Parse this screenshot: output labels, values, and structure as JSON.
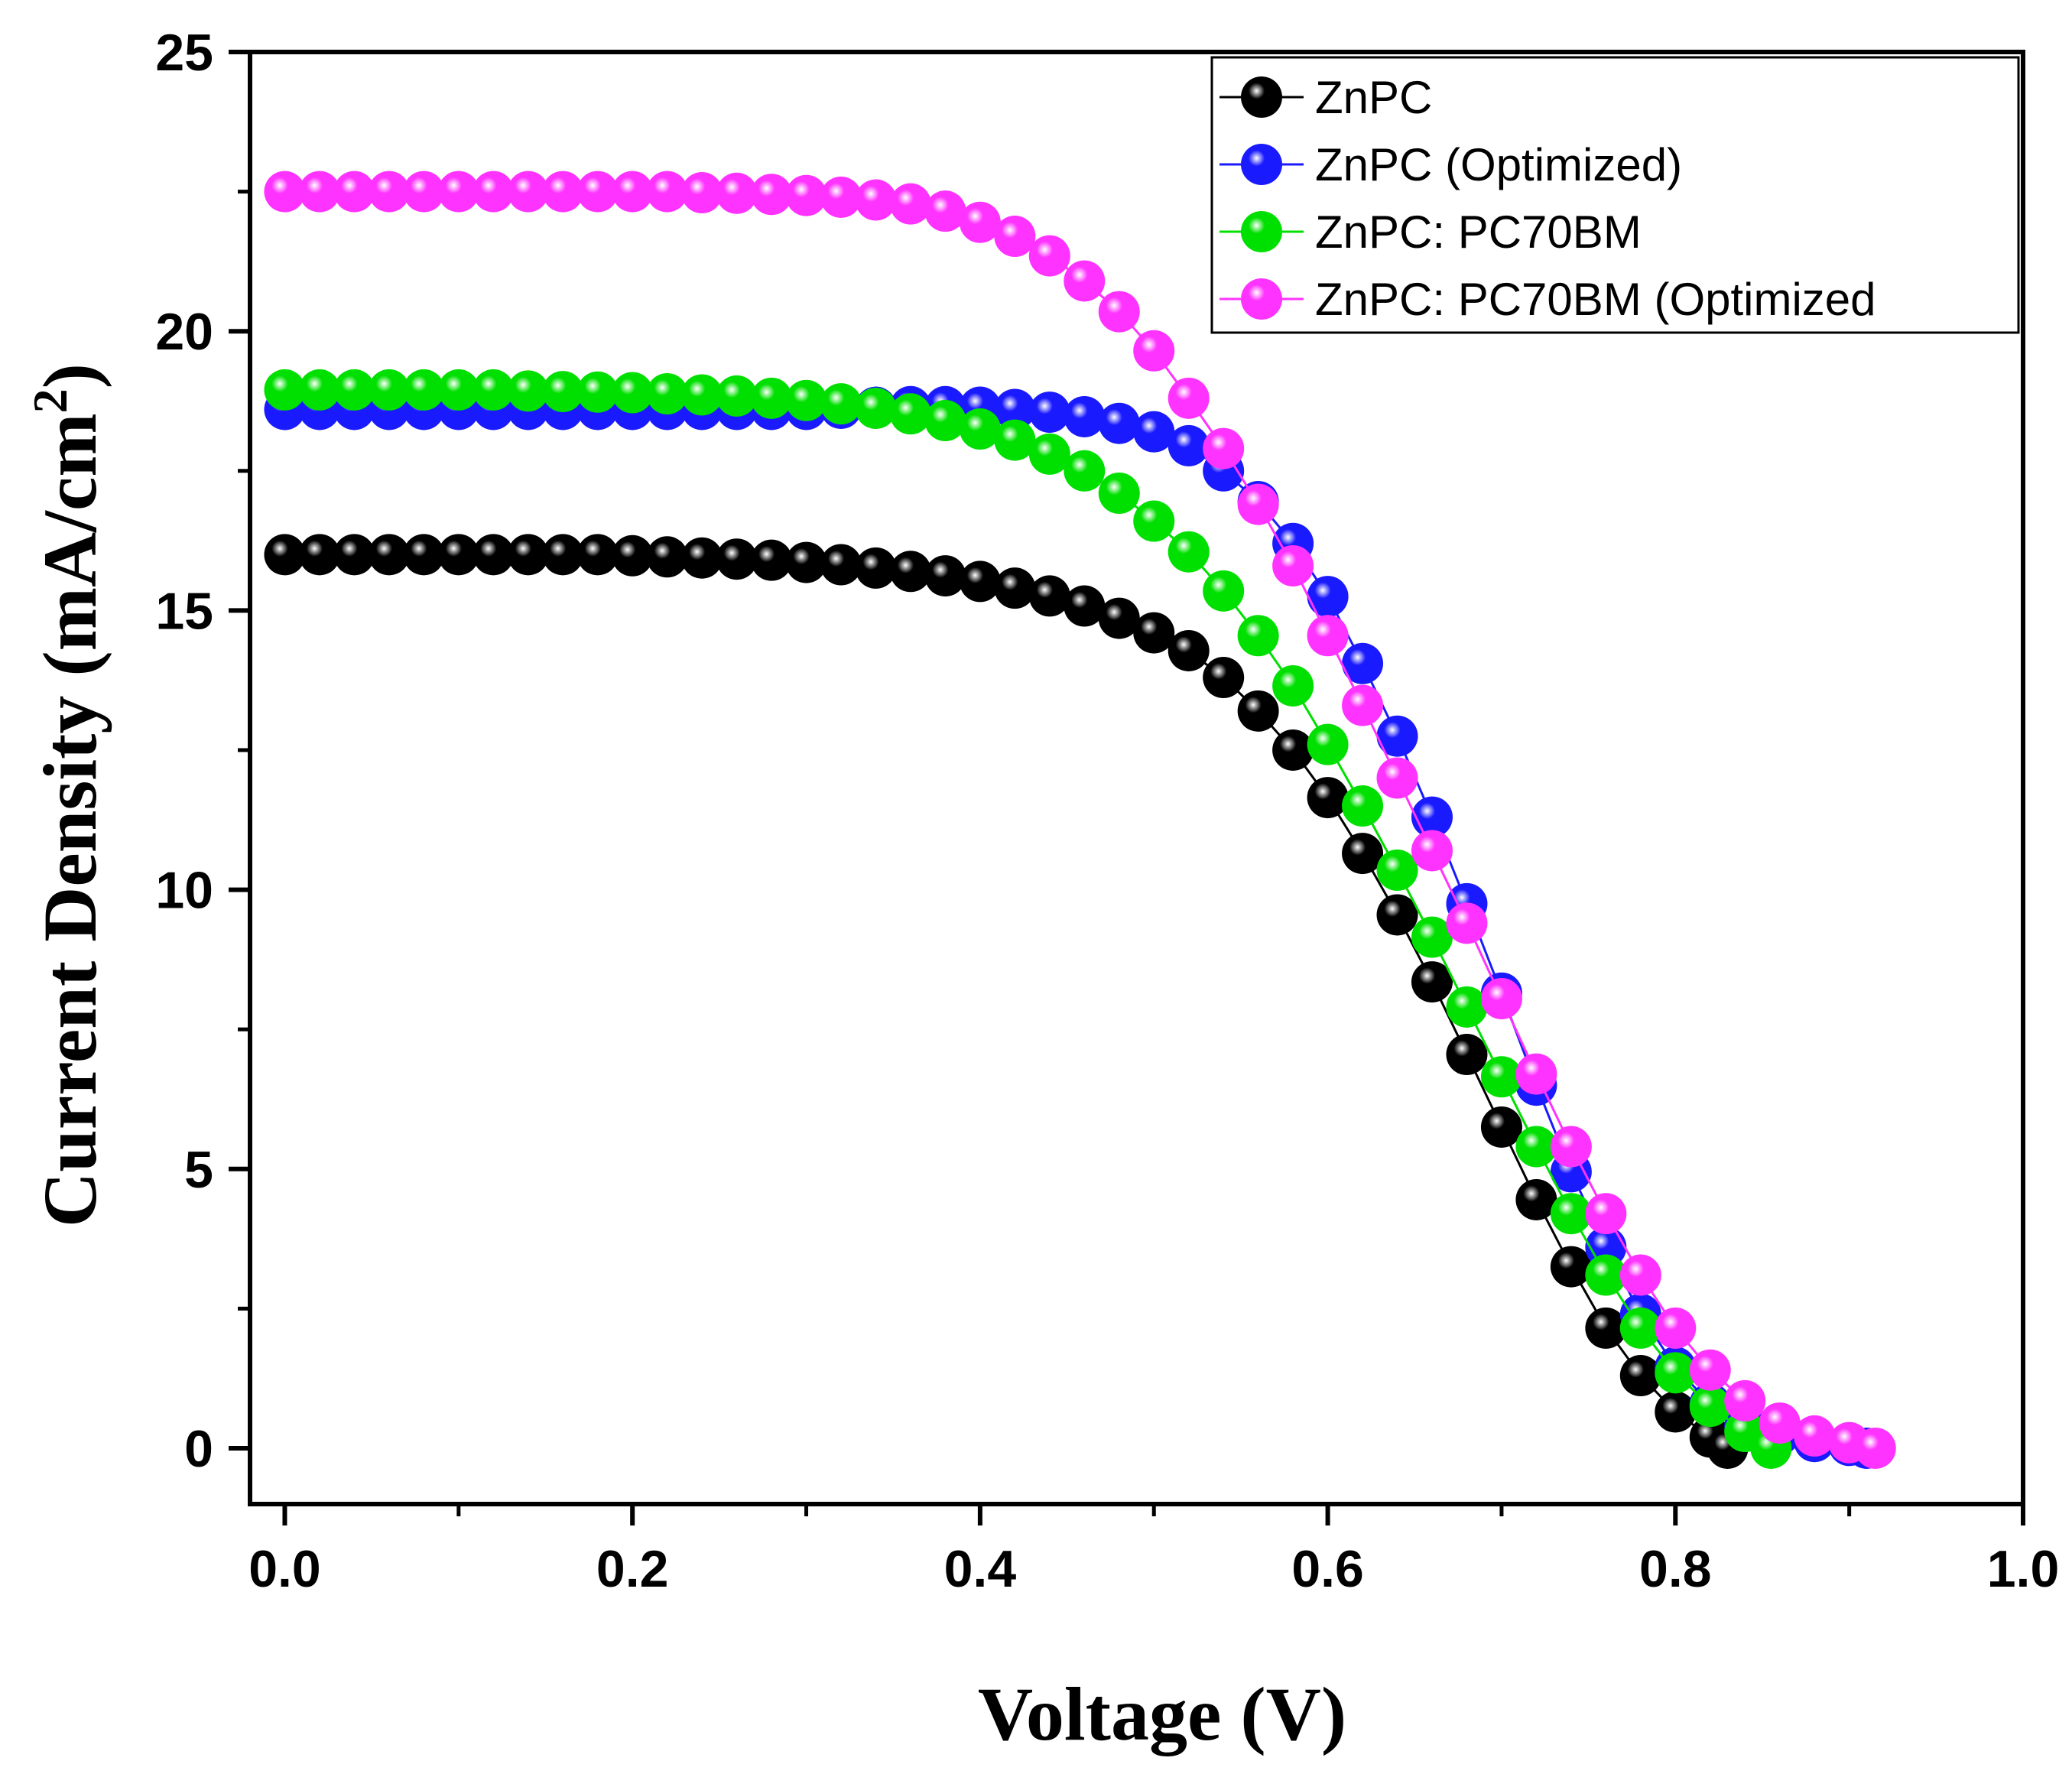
{
  "chart_data": {
    "type": "scatter",
    "title": "",
    "xlabel": "Voltage (V)",
    "ylabel": "Current Density (mA/cm",
    "ylabel_sup": "2",
    "ylabel_close": ")",
    "xlim": [
      -0.02,
      1.0
    ],
    "ylim": [
      -1.0,
      25
    ],
    "xticks": [
      "0.0",
      "0.2",
      "0.4",
      "0.6",
      "0.8",
      "1.0"
    ],
    "xtick_values": [
      0.0,
      0.2,
      0.4,
      0.6,
      0.8,
      1.0
    ],
    "yticks": [
      "0",
      "5",
      "10",
      "15",
      "20",
      "25"
    ],
    "ytick_values": [
      0,
      5,
      10,
      15,
      20,
      25
    ],
    "grid": false,
    "legend_position": "top-right",
    "series": [
      {
        "name": "ZnPC",
        "color": "#000000",
        "x": [
          0.0,
          0.02,
          0.04,
          0.06,
          0.08,
          0.1,
          0.12,
          0.14,
          0.16,
          0.18,
          0.2,
          0.22,
          0.24,
          0.26,
          0.28,
          0.3,
          0.32,
          0.34,
          0.36,
          0.38,
          0.4,
          0.42,
          0.44,
          0.46,
          0.48,
          0.5,
          0.52,
          0.54,
          0.56,
          0.58,
          0.6,
          0.62,
          0.64,
          0.66,
          0.68,
          0.7,
          0.72,
          0.74,
          0.76,
          0.78,
          0.8,
          0.82,
          0.83
        ],
        "y": [
          16.0,
          16.0,
          16.0,
          16.0,
          16.0,
          16.0,
          16.0,
          16.0,
          16.0,
          16.0,
          15.98,
          15.96,
          15.94,
          15.92,
          15.9,
          15.86,
          15.82,
          15.76,
          15.7,
          15.62,
          15.52,
          15.4,
          15.26,
          15.08,
          14.86,
          14.6,
          14.28,
          13.8,
          13.2,
          12.5,
          11.65,
          10.65,
          9.55,
          8.35,
          7.05,
          5.75,
          4.45,
          3.25,
          2.15,
          1.3,
          0.65,
          0.2,
          0.0
        ]
      },
      {
        "name": "ZnPC (Optimized)",
        "color": "#1a1aff",
        "x": [
          0.0,
          0.02,
          0.04,
          0.06,
          0.08,
          0.1,
          0.12,
          0.14,
          0.16,
          0.18,
          0.2,
          0.22,
          0.24,
          0.26,
          0.28,
          0.3,
          0.32,
          0.34,
          0.36,
          0.38,
          0.4,
          0.42,
          0.44,
          0.46,
          0.48,
          0.5,
          0.52,
          0.54,
          0.56,
          0.58,
          0.6,
          0.62,
          0.64,
          0.66,
          0.68,
          0.7,
          0.72,
          0.74,
          0.76,
          0.78,
          0.8,
          0.82,
          0.84,
          0.86,
          0.88,
          0.9,
          0.91
        ],
        "y": [
          18.6,
          18.6,
          18.6,
          18.6,
          18.6,
          18.6,
          18.6,
          18.6,
          18.6,
          18.6,
          18.6,
          18.6,
          18.6,
          18.6,
          18.6,
          18.6,
          18.62,
          18.64,
          18.65,
          18.65,
          18.64,
          18.6,
          18.55,
          18.47,
          18.35,
          18.2,
          17.95,
          17.5,
          16.95,
          16.2,
          15.25,
          14.05,
          12.75,
          11.3,
          9.75,
          8.15,
          6.5,
          4.95,
          3.6,
          2.4,
          1.45,
          0.8,
          0.4,
          0.25,
          0.12,
          0.05,
          0.0
        ]
      },
      {
        "name": "ZnPC: PC70BM",
        "color": "#00e000",
        "x": [
          0.0,
          0.02,
          0.04,
          0.06,
          0.08,
          0.1,
          0.12,
          0.14,
          0.16,
          0.18,
          0.2,
          0.22,
          0.24,
          0.26,
          0.28,
          0.3,
          0.32,
          0.34,
          0.36,
          0.38,
          0.4,
          0.42,
          0.44,
          0.46,
          0.48,
          0.5,
          0.52,
          0.54,
          0.56,
          0.58,
          0.6,
          0.62,
          0.64,
          0.66,
          0.68,
          0.7,
          0.72,
          0.74,
          0.76,
          0.78,
          0.8,
          0.82,
          0.84,
          0.855
        ],
        "y": [
          18.95,
          18.95,
          18.95,
          18.95,
          18.95,
          18.95,
          18.95,
          18.93,
          18.92,
          18.91,
          18.9,
          18.88,
          18.86,
          18.84,
          18.8,
          18.76,
          18.7,
          18.62,
          18.52,
          18.4,
          18.25,
          18.05,
          17.8,
          17.5,
          17.1,
          16.6,
          16.05,
          15.35,
          14.55,
          13.65,
          12.6,
          11.5,
          10.35,
          9.15,
          7.9,
          6.65,
          5.4,
          4.2,
          3.1,
          2.15,
          1.35,
          0.75,
          0.3,
          0.0
        ]
      },
      {
        "name": "ZnPC: PC70BM (Optimized",
        "color": "#ff33ff",
        "x": [
          0.0,
          0.02,
          0.04,
          0.06,
          0.08,
          0.1,
          0.12,
          0.14,
          0.16,
          0.18,
          0.2,
          0.22,
          0.24,
          0.26,
          0.28,
          0.3,
          0.32,
          0.34,
          0.36,
          0.38,
          0.4,
          0.42,
          0.44,
          0.46,
          0.48,
          0.5,
          0.52,
          0.54,
          0.56,
          0.58,
          0.6,
          0.62,
          0.64,
          0.66,
          0.68,
          0.7,
          0.72,
          0.74,
          0.76,
          0.78,
          0.8,
          0.82,
          0.84,
          0.86,
          0.88,
          0.9,
          0.915
        ],
        "y": [
          22.5,
          22.5,
          22.5,
          22.5,
          22.5,
          22.5,
          22.5,
          22.5,
          22.5,
          22.5,
          22.5,
          22.5,
          22.48,
          22.47,
          22.45,
          22.43,
          22.4,
          22.35,
          22.28,
          22.15,
          21.95,
          21.7,
          21.35,
          20.9,
          20.35,
          19.65,
          18.8,
          17.9,
          16.9,
          15.8,
          14.55,
          13.3,
          12.0,
          10.7,
          9.4,
          8.05,
          6.7,
          5.4,
          4.2,
          3.1,
          2.15,
          1.4,
          0.85,
          0.45,
          0.22,
          0.1,
          0.0
        ]
      }
    ]
  }
}
